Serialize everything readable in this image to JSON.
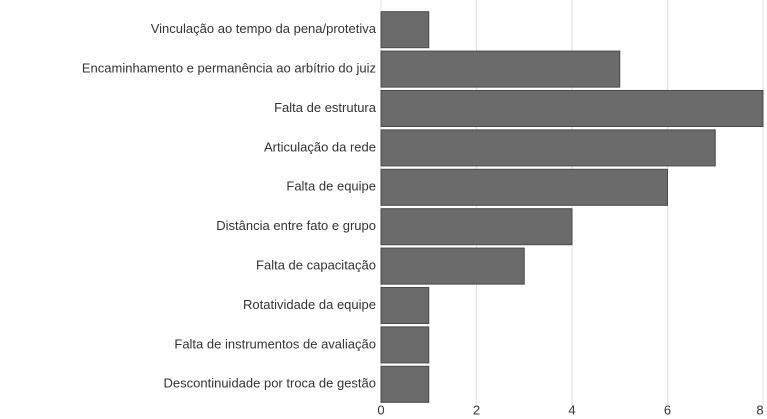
{
  "chart_data": {
    "type": "bar",
    "orientation": "horizontal",
    "categories": [
      "Vinculação ao tempo da pena/protetiva",
      "Encaminhamento e permanência ao arbítrio do juiz",
      "Falta de estrutura",
      "Articulação da rede",
      "Falta de equipe",
      "Distância entre fato e grupo",
      "Falta de capacitação",
      "Rotatividade da equipe",
      "Falta de instrumentos de avaliação",
      "Descontinuidade por troca de gestão"
    ],
    "values": [
      1,
      5,
      8,
      7,
      6,
      4,
      3,
      1,
      1,
      1
    ],
    "color": "#6b6b6b",
    "xlim": [
      0,
      8
    ],
    "xticks": [
      0,
      2,
      4,
      6,
      8
    ],
    "grid": true
  }
}
